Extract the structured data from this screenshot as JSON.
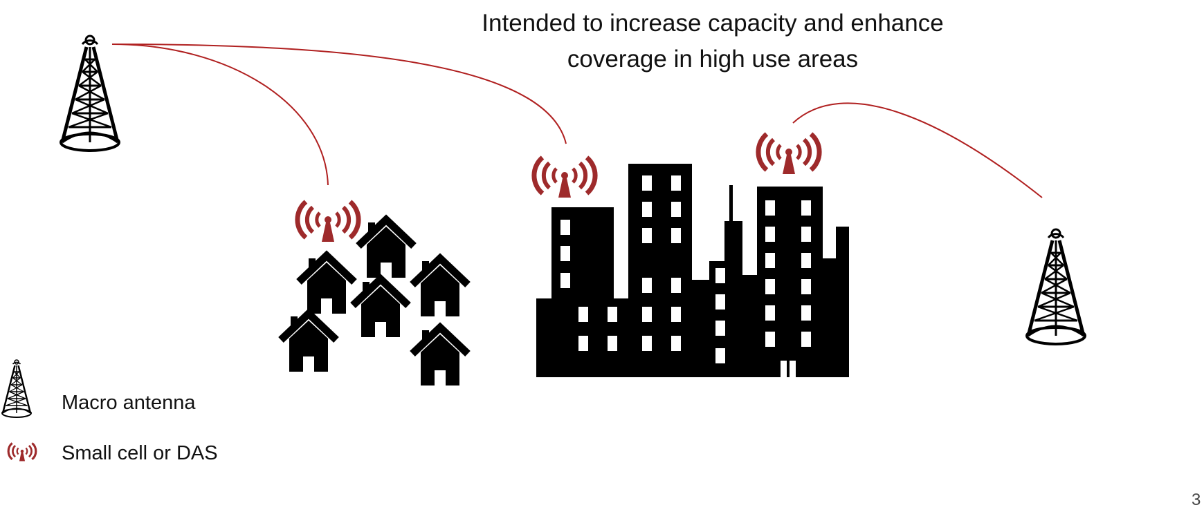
{
  "title": {
    "line1": "Intended to increase capacity and enhance",
    "line2": "coverage in high use areas"
  },
  "legend": {
    "macro_label": "Macro antenna",
    "small_cell_label": "Small cell or DAS"
  },
  "page_number": "3",
  "colors": {
    "link": "#b02020",
    "small_cell": "#9e2a2b",
    "silhouette": "#000000"
  },
  "icons": [
    "macro-tower-icon",
    "small-cell-icon",
    "house-icon",
    "city-buildings-icon"
  ]
}
